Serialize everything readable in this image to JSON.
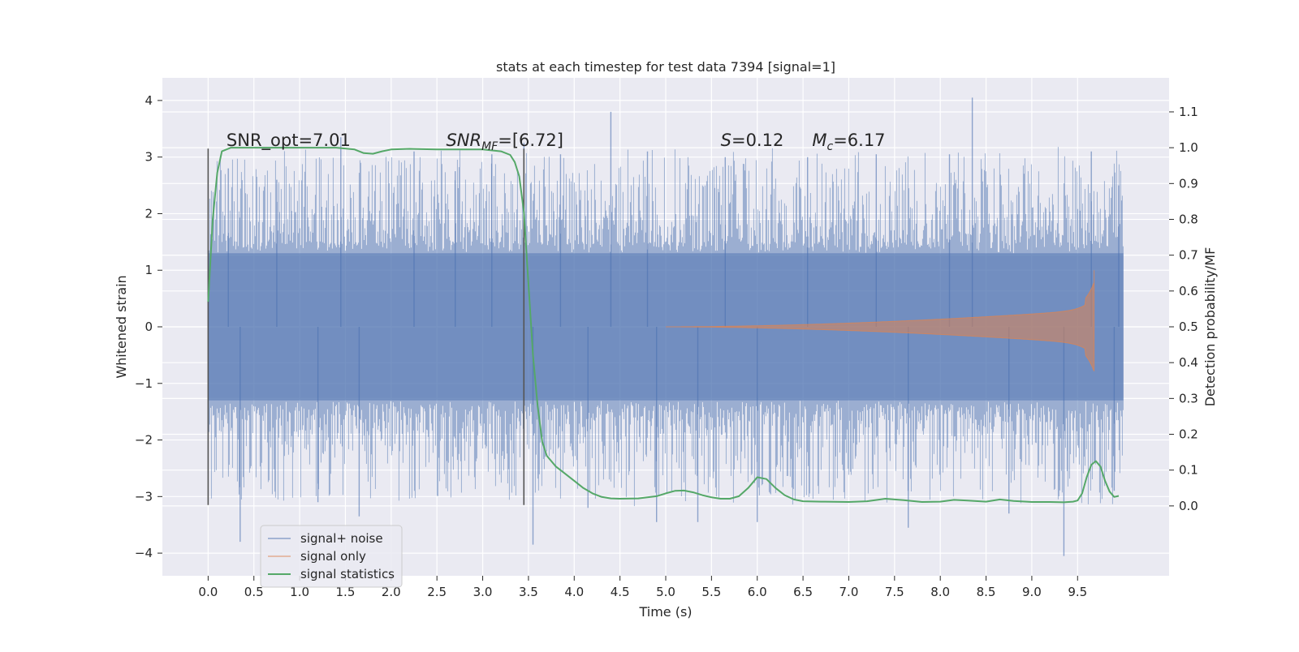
{
  "chart_data": {
    "type": "line",
    "title": "stats at each timestep for test data 7394 [signal=1]",
    "xlabel": "Time (s)",
    "ylabel": "Whitened strain",
    "y2label": "Detection probability/MF",
    "xlim": [
      -0.5,
      10.5
    ],
    "ylim": [
      -4.4,
      4.4
    ],
    "y2lim": [
      -0.195,
      1.195
    ],
    "xticks": [
      "0.0",
      "0.5",
      "1.0",
      "1.5",
      "2.0",
      "2.5",
      "3.0",
      "3.5",
      "4.0",
      "4.5",
      "5.0",
      "5.5",
      "6.0",
      "6.5",
      "7.0",
      "7.5",
      "8.0",
      "8.5",
      "9.0",
      "9.5"
    ],
    "yticks": [
      "−4",
      "−3",
      "−2",
      "−1",
      "0",
      "1",
      "2",
      "3",
      "4"
    ],
    "y2ticks": [
      "0.0",
      "0.1",
      "0.2",
      "0.3",
      "0.4",
      "0.5",
      "0.6",
      "0.7",
      "0.8",
      "0.9",
      "1.0",
      "1.1"
    ],
    "grid": true,
    "legend_position": "lower-left",
    "annotations": [
      {
        "parts": [
          "SNR_opt=7.01"
        ],
        "x": 0.2,
        "y": 3.3
      },
      {
        "parts": [
          "SNR",
          "MF",
          "=[6.72]"
        ],
        "x": 2.6,
        "y": 3.3
      },
      {
        "parts": [
          "S",
          "=0.12"
        ],
        "x": 5.6,
        "y": 3.3
      },
      {
        "parts": [
          "M",
          "c",
          "=6.17"
        ],
        "x": 6.6,
        "y": 3.3
      }
    ],
    "vlines": [
      0.0,
      3.45
    ],
    "vline_range": [
      -3.15,
      3.15
    ],
    "series": [
      {
        "name": "signal+ noise",
        "color": "#4c72b0",
        "axis": "left",
        "kind": "noise",
        "x_range": [
          0.0,
          10.0
        ],
        "envelope": [
          1.3,
          -1.3
        ],
        "spike_max": [
          4.05,
          -4.05
        ],
        "peaks": [
          [
            0.0,
            1.35
          ],
          [
            0.22,
            2.8
          ],
          [
            0.35,
            -3.8
          ],
          [
            0.75,
            2.6
          ],
          [
            1.2,
            -3.1
          ],
          [
            1.45,
            3.35
          ],
          [
            1.65,
            -3.35
          ],
          [
            2.25,
            3.1
          ],
          [
            2.7,
            2.75
          ],
          [
            3.1,
            3.05
          ],
          [
            3.45,
            3.25
          ],
          [
            3.55,
            -3.85
          ],
          [
            3.85,
            3.05
          ],
          [
            4.15,
            -3.2
          ],
          [
            4.4,
            3.8
          ],
          [
            4.8,
            3.1
          ],
          [
            4.9,
            -3.45
          ],
          [
            5.35,
            -3.45
          ],
          [
            5.65,
            3.0
          ],
          [
            6.0,
            -3.45
          ],
          [
            6.55,
            3.0
          ],
          [
            7.3,
            3.05
          ],
          [
            7.65,
            -3.55
          ],
          [
            8.1,
            3.05
          ],
          [
            8.35,
            4.05
          ],
          [
            8.75,
            -3.3
          ],
          [
            9.35,
            -4.05
          ],
          [
            9.65,
            3.1
          ],
          [
            9.9,
            -2.9
          ],
          [
            9.95,
            2.5
          ]
        ]
      },
      {
        "name": "signal only",
        "color": "#dd8452",
        "axis": "left",
        "kind": "chirp",
        "t_start": 5.0,
        "t_merge": 9.68,
        "peak_amplitude": 1.0,
        "trough_amplitude": -0.65
      },
      {
        "name": "signal statistics",
        "color": "#55a868",
        "axis": "right",
        "kind": "line",
        "x": [
          0.0,
          0.05,
          0.1,
          0.15,
          0.25,
          0.4,
          0.6,
          0.8,
          1.0,
          1.2,
          1.4,
          1.6,
          1.7,
          1.8,
          1.9,
          2.0,
          2.2,
          2.5,
          2.8,
          3.0,
          3.2,
          3.3,
          3.35,
          3.4,
          3.45,
          3.5,
          3.55,
          3.6,
          3.65,
          3.7,
          3.8,
          3.9,
          4.0,
          4.1,
          4.2,
          4.3,
          4.4,
          4.5,
          4.7,
          4.9,
          5.0,
          5.1,
          5.2,
          5.3,
          5.4,
          5.5,
          5.6,
          5.7,
          5.8,
          5.9,
          5.95,
          6.0,
          6.1,
          6.2,
          6.3,
          6.4,
          6.5,
          6.7,
          7.0,
          7.2,
          7.4,
          7.6,
          7.8,
          8.0,
          8.15,
          8.3,
          8.5,
          8.65,
          8.8,
          9.0,
          9.2,
          9.35,
          9.45,
          9.5,
          9.55,
          9.6,
          9.65,
          9.7,
          9.75,
          9.8,
          9.85,
          9.9,
          9.95
        ],
        "y": [
          0.57,
          0.8,
          0.93,
          0.99,
          1.0,
          1.0,
          1.0,
          1.0,
          1.0,
          1.0,
          1.0,
          0.995,
          0.985,
          0.983,
          0.99,
          0.995,
          0.997,
          0.995,
          0.995,
          0.995,
          0.99,
          0.98,
          0.96,
          0.92,
          0.82,
          0.62,
          0.42,
          0.28,
          0.18,
          0.14,
          0.11,
          0.09,
          0.07,
          0.05,
          0.035,
          0.025,
          0.021,
          0.02,
          0.021,
          0.027,
          0.035,
          0.042,
          0.043,
          0.038,
          0.03,
          0.024,
          0.02,
          0.02,
          0.027,
          0.05,
          0.065,
          0.08,
          0.075,
          0.05,
          0.03,
          0.018,
          0.013,
          0.012,
          0.011,
          0.013,
          0.02,
          0.016,
          0.011,
          0.012,
          0.017,
          0.015,
          0.012,
          0.018,
          0.014,
          0.011,
          0.011,
          0.01,
          0.012,
          0.015,
          0.035,
          0.08,
          0.115,
          0.125,
          0.11,
          0.07,
          0.04,
          0.025,
          0.028
        ]
      }
    ]
  }
}
